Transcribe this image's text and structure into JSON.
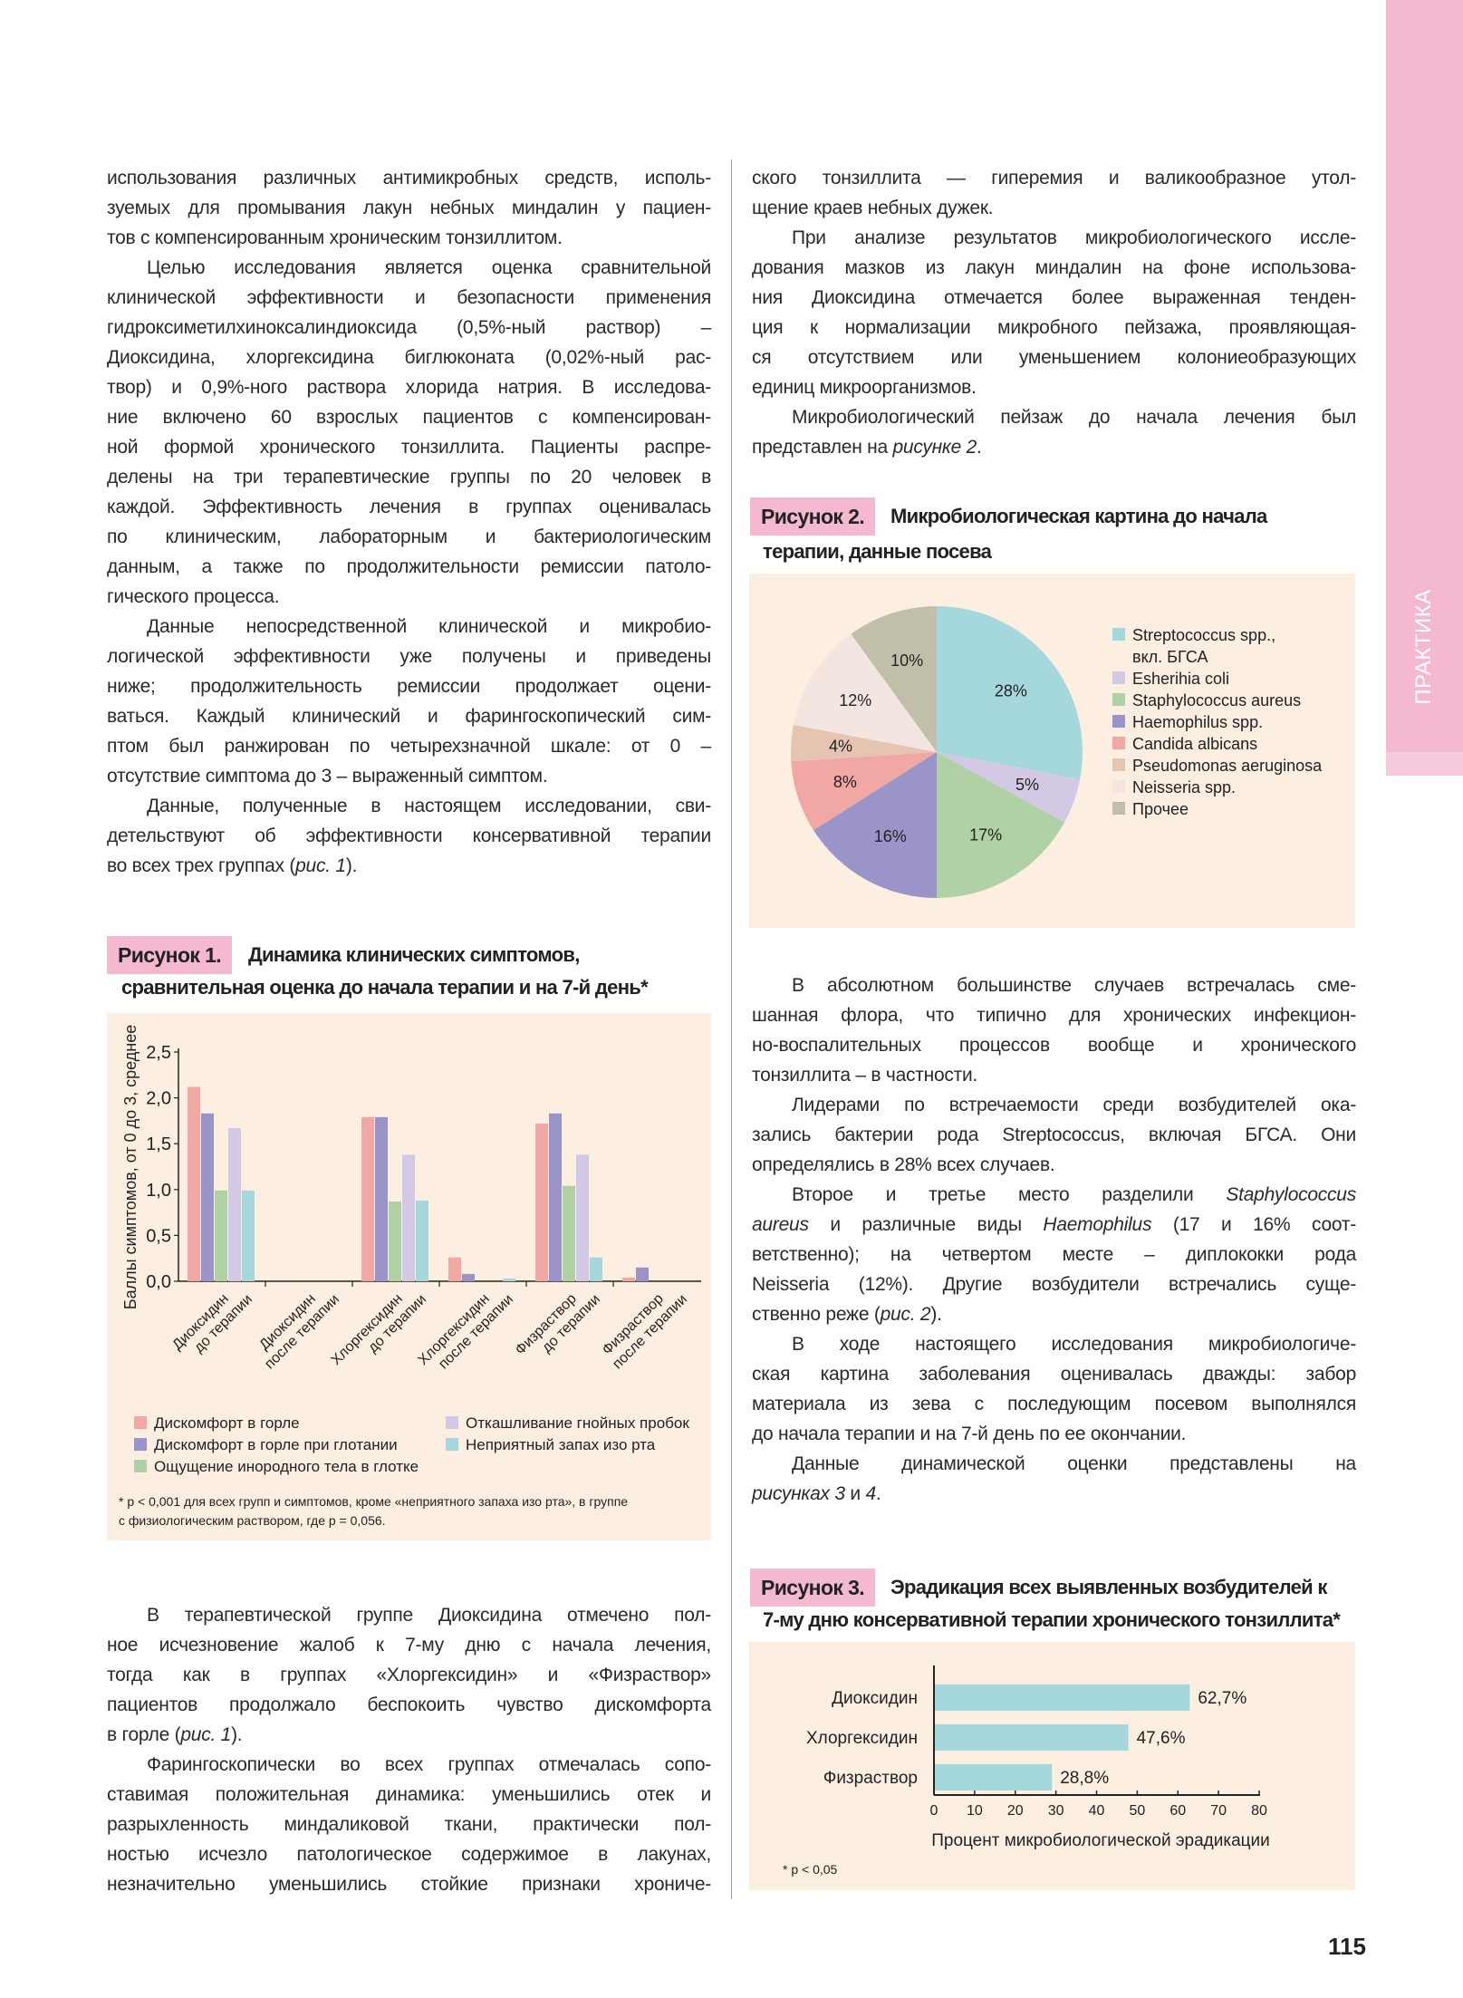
{
  "side_tab": {
    "label": "ПРАКТИКА",
    "color": "#f4b8d0"
  },
  "page_number": "115",
  "left_top": [
    {
      "indent": false,
      "lines": [
        "использования различных антимикробных средств, исполь-",
        "зуемых для промывания лакун небных миндалин у пациен-",
        "тов с компенсированным хроническим тонзиллитом."
      ]
    },
    {
      "indent": true,
      "lines": [
        "Целью исследования является оценка сравнительной",
        "клинической эффективности и безопасности применения",
        "гидроксиметилхиноксалиндиоксида (0,5%-ный раствор) –",
        "Диоксидина, хлоргексидина биглюконата (0,02%-ный рас-",
        "твор) и 0,9%-ного раствора хлорида натрия. В исследова-",
        "ние включено 60 взрослых пациентов с компенсирован-",
        "ной формой хронического тонзиллита. Пациенты распре-",
        "делены на три терапевтические группы по 20 человек в",
        "каждой. Эффективность лечения в группах оценивалась",
        "по клиническим, лабораторным и бактериологическим",
        "данным, а также по продолжительности ремиссии патоло-",
        "гического процесса."
      ]
    },
    {
      "indent": true,
      "lines": [
        "Данные непосредственной клинической и микробио-",
        "логической эффективности уже получены и приведены",
        "ниже; продолжительность ремиссии продолжает оцени-",
        "ваться. Каждый клинический и фарингоскопический сим-",
        "птом был ранжирован по четырехзначной шкале: от 0 –",
        "отсутствие симптома до 3 – выраженный симптом."
      ]
    },
    {
      "indent": true,
      "lines": [
        "Данные, полученные в настоящем исследовании, сви-",
        "детельствуют об эффективности консервативной терапии",
        [
          "во всех трех группах (",
          {
            "i": "рис. 1"
          },
          ")."
        ]
      ]
    }
  ],
  "left_bottom": [
    {
      "indent": true,
      "lines": [
        "В терапевтической группе Диоксидина отмечено пол-",
        "ное исчезновение жалоб к 7-му дню с начала лечения,",
        "тогда как в группах «Хлоргексидин» и «Физраствор»",
        "пациентов продолжало беспокоить чувство дискомфорта",
        [
          "в горле (",
          {
            "i": "рис. 1"
          },
          ")."
        ]
      ]
    },
    {
      "indent": true,
      "lines": [
        "Фарингоскопически во всех группах отмечалась сопо-",
        "ставимая положительная динамика: уменьшились отек и",
        "разрыхленность миндаликовой ткани, практически пол-",
        "ностью исчезло патологическое содержимое в лакунах,",
        "незначительно уменьшились стойкие признаки хрониче-"
      ]
    }
  ],
  "right_top": [
    {
      "indent": false,
      "lines": [
        "ского тонзиллита — гиперемия и валикообразное утол-",
        "щение краев небных дужек."
      ]
    },
    {
      "indent": true,
      "lines": [
        "При анализе результатов микробиологического иссле-",
        "дования мазков из лакун миндалин на фоне использова-",
        "ния Диоксидина отмечается более выраженная тенден-",
        "ция к нормализации микробного пейзажа, проявляющая-",
        "ся отсутствием или уменьшением колониеобразующих",
        "единиц микроорганизмов."
      ]
    },
    {
      "indent": true,
      "lines": [
        "Микробиологический пейзаж до начала лечения был",
        [
          "представлен на ",
          {
            "i": "рисунке 2"
          },
          "."
        ]
      ]
    }
  ],
  "right_middle": [
    {
      "indent": true,
      "lines": [
        "В абсолютном большинстве случаев встречалась сме-",
        "шанная флора, что типично для хронических инфекцион-",
        "но-воспалительных процессов вообще и хронического",
        "тонзиллита – в частности."
      ]
    },
    {
      "indent": true,
      "lines": [
        "Лидерами по встречаемости среди возбудителей ока-",
        "зались бактерии рода Streptococcus, включая БГСА. Они",
        "определялись в 28% всех случаев."
      ]
    },
    {
      "indent": true,
      "lines": [
        [
          "Второе и третье место разделили ",
          {
            "i": "Staphylococcus"
          }
        ],
        [
          {
            "i": "aureus"
          },
          " и различные виды ",
          {
            "i": "Haemophilus"
          },
          " (17 и 16% соот-"
        ],
        "ветственно); на четвертом месте – диплококки рода",
        "Neisseria (12%). Другие возбудители встречались суще-",
        [
          "ственно реже (",
          {
            "i": "рис. 2"
          },
          ")."
        ]
      ]
    },
    {
      "indent": true,
      "lines": [
        "В ходе настоящего исследования микробиологиче-",
        "ская картина заболевания оценивалась дважды: забор",
        "материала из зева с последующим посевом выполнялся",
        "до начала терапии и на 7-й день по ее окончании."
      ]
    },
    {
      "indent": true,
      "lines": [
        "Данные динамической оценки представлены на",
        [
          {
            "i": "рисунках 3"
          },
          " и ",
          {
            "i": "4"
          },
          "."
        ]
      ]
    }
  ],
  "figure1": {
    "label": "Рисунок 1.",
    "title_lines": [
      "Динамика клинических симптомов,",
      "сравнительная оценка до начала терапии и на 7-й день*"
    ],
    "footnote_lines": [
      "* p < 0,001 для всех групп и симптомов, кроме «неприятного запаха изо рта», в группе",
      "с физиологическим раствором, где p = 0,056."
    ]
  },
  "figure2": {
    "label": "Рисунок 2.",
    "title_lines": [
      "Микробиологическая картина до начала",
      "терапии, данные посева"
    ]
  },
  "figure3": {
    "label": "Рисунок 3.",
    "title_lines": [
      "Эрадикация всех выявленных возбудителей к",
      "7-му дню консервативной терапии хронического тонзиллита*"
    ],
    "footnote": "* p < 0,05"
  },
  "chart_data": [
    {
      "type": "bar",
      "ylabel": "Баллы симптомов, от 0 до 3, среднее",
      "ylim": [
        0,
        2.5
      ],
      "yticks": [
        "0,0",
        "0,5",
        "1,0",
        "1,5",
        "2,0",
        "2,5"
      ],
      "categories": [
        [
          "Диоксидин",
          "до терапии"
        ],
        [
          "Диоксидин",
          "после терапии"
        ],
        [
          "Хлоргексидин",
          "до терапии"
        ],
        [
          "Хлоргексидин",
          "после терапии"
        ],
        [
          "Физраствор",
          "до терапии"
        ],
        [
          "Физраствор",
          "после терапии"
        ]
      ],
      "legend_placement": "bottom",
      "series": [
        {
          "name": "Дискомфорт в горле",
          "color": "#f1a7a3",
          "values": [
            2.12,
            0,
            1.79,
            0.26,
            1.72,
            0.04
          ]
        },
        {
          "name": "Дискомфорт в горле при глотании",
          "color": "#9b94c8",
          "values": [
            1.83,
            0,
            1.79,
            0.08,
            1.83,
            0.15
          ]
        },
        {
          "name": "Ощущение инородного тела в глотке",
          "color": "#b0d1a6",
          "values": [
            0.99,
            0,
            0.87,
            0,
            1.04,
            0
          ]
        },
        {
          "name": "Откашливание гнойных пробок",
          "color": "#d4c9e4",
          "values": [
            1.67,
            0,
            1.38,
            0,
            1.38,
            0
          ]
        },
        {
          "name": "Неприятный запах изо рта",
          "color": "#a5d8dc",
          "values": [
            0.99,
            0,
            0.88,
            0.03,
            0.26,
            0
          ]
        }
      ]
    },
    {
      "type": "pie",
      "legend_placement": "right",
      "slices": [
        {
          "label": "Streptococcus spp., вкл. БГСА",
          "legend_lines": [
            "Streptococcus spp.,",
            "вкл. БГСА"
          ],
          "value": 28,
          "text": "28%",
          "color": "#a5d8dc"
        },
        {
          "label": "Esherihia coli",
          "legend_lines": [
            "Esherihia coli"
          ],
          "value": 5,
          "text": "5%",
          "color": "#d4c9e4"
        },
        {
          "label": "Staphylococcus aureus",
          "legend_lines": [
            "Staphylococcus aureus"
          ],
          "value": 17,
          "text": "17%",
          "color": "#b0d1a6"
        },
        {
          "label": "Haemophilus spp.",
          "legend_lines": [
            "Haemophilus spp."
          ],
          "value": 16,
          "text": "16%",
          "color": "#9b94c8"
        },
        {
          "label": "Candida albicans",
          "legend_lines": [
            "Candida albicans"
          ],
          "value": 8,
          "text": "8%",
          "color": "#f1a7a3"
        },
        {
          "label": "Pseudomonas aeruginosa",
          "legend_lines": [
            "Pseudomonas aeruginosa"
          ],
          "value": 4,
          "text": "4%",
          "color": "#e5c5b2"
        },
        {
          "label": "Neisseria spp.",
          "legend_lines": [
            "Neisseria spp."
          ],
          "value": 12,
          "text": "12%",
          "color": "#f3e5df"
        },
        {
          "label": "Прочее",
          "legend_lines": [
            "Прочее"
          ],
          "value": 10,
          "text": "10%",
          "color": "#c1bfaa"
        }
      ]
    },
    {
      "type": "bar",
      "orientation": "horizontal",
      "categories": [
        "Диоксидин",
        "Хлоргексидин",
        "Физраствор"
      ],
      "values": [
        62.7,
        47.6,
        28.8
      ],
      "value_labels": [
        "62,7%",
        "47,6%",
        "28,8%"
      ],
      "xlabel": "Процент микробиологической эрадикации",
      "xlim": [
        0,
        80
      ],
      "xticks": [
        "0",
        "10",
        "20",
        "30",
        "40",
        "50",
        "60",
        "70",
        "80"
      ],
      "color": "#a5d8dc"
    }
  ],
  "colors": {
    "figure_background": "#fdeee2",
    "figure_label": "#f4b9d1"
  }
}
